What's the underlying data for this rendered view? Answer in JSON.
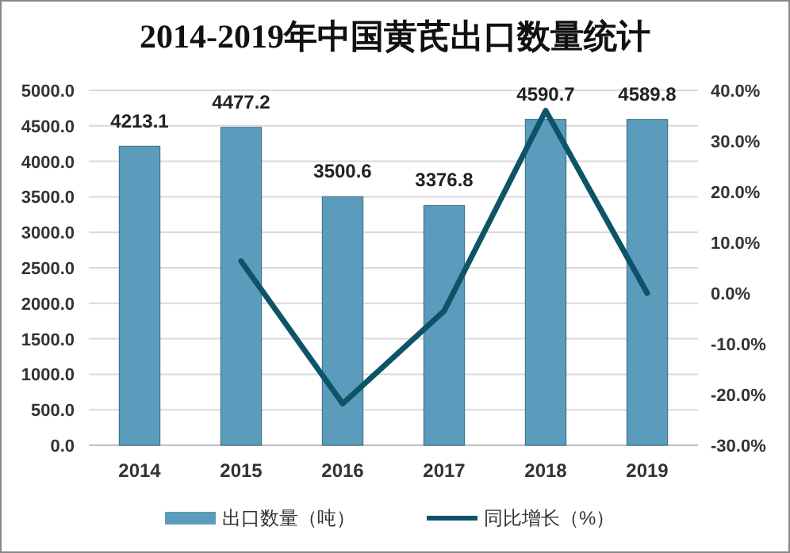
{
  "chart_data": {
    "type": "bar",
    "title": "2014-2019年中国黄芪出口数量统计",
    "categories": [
      "2014",
      "2015",
      "2016",
      "2017",
      "2018",
      "2019"
    ],
    "series": [
      {
        "name": "出口数量（吨）",
        "color": "#5b9bbb",
        "values": [
          4213.1,
          4477.2,
          3500.6,
          3376.8,
          4590.7,
          4589.8
        ],
        "data_labels": true
      },
      {
        "name": "同比增长（%）",
        "type": "line",
        "axis": "y2",
        "color": "#0e5468",
        "values": [
          null,
          6.3,
          -21.8,
          -3.5,
          36.0,
          0.0
        ]
      }
    ],
    "ylim": [
      0,
      5000
    ],
    "yticks": [
      {
        "value": 0,
        "label": "0.0"
      },
      {
        "value": 500,
        "label": "500.0"
      },
      {
        "value": 1000,
        "label": "1000.0"
      },
      {
        "value": 1500,
        "label": "1500.0"
      },
      {
        "value": 2000,
        "label": "2000.0"
      },
      {
        "value": 2500,
        "label": "2500.0"
      },
      {
        "value": 3000,
        "label": "3000.0"
      },
      {
        "value": 3500,
        "label": "3500.0"
      },
      {
        "value": 4000,
        "label": "4000.0"
      },
      {
        "value": 4500,
        "label": "4500.0"
      },
      {
        "value": 5000,
        "label": "5000.0"
      }
    ],
    "y2lim": [
      -30,
      40
    ],
    "y2ticks": [
      {
        "value": -30,
        "label": "-30.0%"
      },
      {
        "value": -20,
        "label": "-20.0%"
      },
      {
        "value": -10,
        "label": "-10.0%"
      },
      {
        "value": 0,
        "label": "0.0%"
      },
      {
        "value": 10,
        "label": "10.0%"
      },
      {
        "value": 20,
        "label": "20.0%"
      },
      {
        "value": 30,
        "label": "30.0%"
      },
      {
        "value": 40,
        "label": "40.0%"
      }
    ],
    "grid": "y",
    "legend": "bottom",
    "marker": "none",
    "line_style": "solid"
  }
}
